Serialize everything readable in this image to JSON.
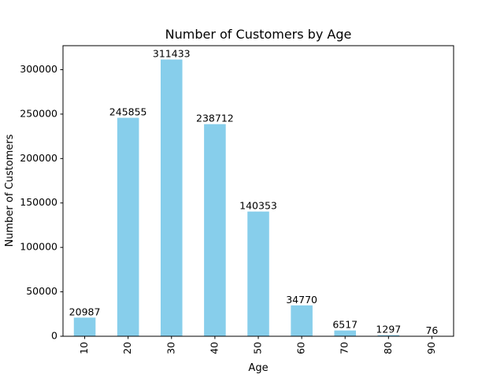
{
  "chart_data": {
    "type": "bar",
    "title": "Number of Customers by Age",
    "xlabel": "Age",
    "ylabel": "Number of Customers",
    "categories": [
      "10",
      "20",
      "30",
      "40",
      "50",
      "60",
      "70",
      "80",
      "90"
    ],
    "values": [
      20987,
      245855,
      311433,
      238712,
      140353,
      34770,
      6517,
      1297,
      76
    ],
    "data_labels": [
      "20987",
      "245855",
      "311433",
      "238712",
      "140353",
      "34770",
      "6517",
      "1297",
      "76"
    ],
    "ylim": [
      0,
      327005
    ],
    "yticks": [
      0,
      50000,
      100000,
      150000,
      200000,
      250000,
      300000
    ],
    "ytick_labels": [
      "0",
      "50000",
      "100000",
      "150000",
      "200000",
      "250000",
      "300000"
    ],
    "x_tick_rotation": "vertical",
    "grid": false,
    "legend": "none",
    "bar_color": "#87ceeb"
  }
}
